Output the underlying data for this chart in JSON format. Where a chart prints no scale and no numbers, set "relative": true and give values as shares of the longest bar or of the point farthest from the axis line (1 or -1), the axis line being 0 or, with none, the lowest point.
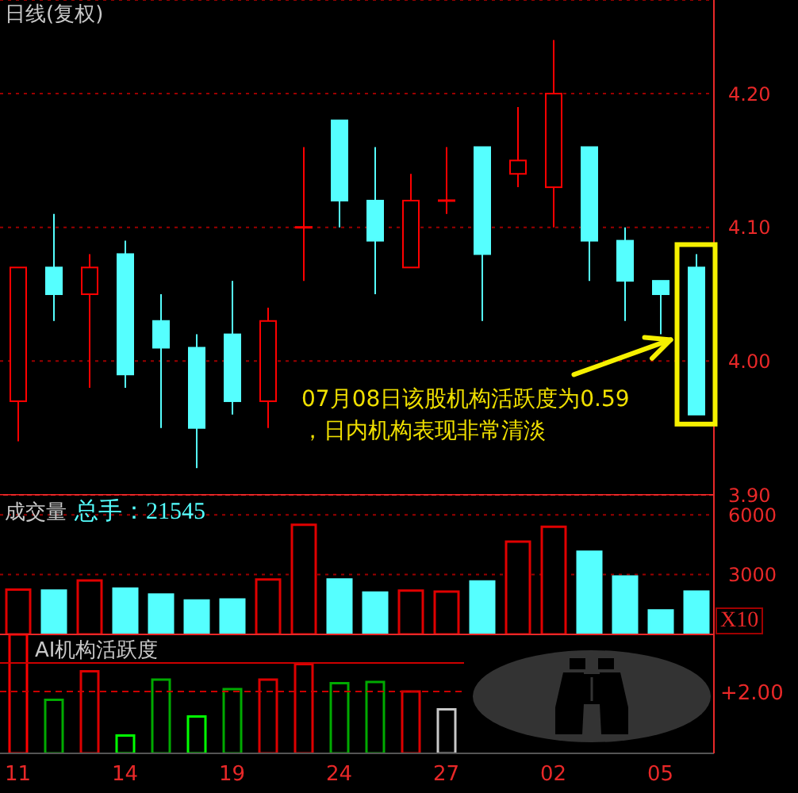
{
  "chart_data": [
    {
      "type": "candlestick",
      "title": "日线(复权)",
      "categories": [
        "11",
        null,
        null,
        "14",
        null,
        null,
        "19",
        null,
        null,
        "24",
        null,
        null,
        "27",
        null,
        null,
        "02",
        null,
        null,
        "05",
        null
      ],
      "ohlc": [
        [
          3.97,
          4.07,
          3.94,
          4.07
        ],
        [
          4.07,
          4.11,
          4.03,
          4.05
        ],
        [
          4.05,
          4.08,
          3.98,
          4.07
        ],
        [
          4.08,
          4.09,
          3.98,
          3.99
        ],
        [
          4.03,
          4.05,
          3.95,
          4.01
        ],
        [
          4.01,
          4.02,
          3.92,
          3.95
        ],
        [
          4.02,
          4.06,
          3.96,
          3.97
        ],
        [
          3.97,
          4.04,
          3.95,
          4.03
        ],
        [
          4.1,
          4.16,
          4.06,
          4.1
        ],
        [
          4.18,
          4.18,
          4.1,
          4.12
        ],
        [
          4.12,
          4.16,
          4.05,
          4.09
        ],
        [
          4.07,
          4.14,
          4.07,
          4.12
        ],
        [
          4.12,
          4.16,
          4.11,
          4.12
        ],
        [
          4.16,
          4.16,
          4.03,
          4.08
        ],
        [
          4.14,
          4.19,
          4.13,
          4.15
        ],
        [
          4.13,
          4.24,
          4.1,
          4.2
        ],
        [
          4.16,
          4.16,
          4.06,
          4.09
        ],
        [
          4.09,
          4.1,
          4.03,
          4.06
        ],
        [
          4.06,
          4.06,
          4.02,
          4.05
        ],
        [
          4.07,
          4.08,
          3.96,
          3.96
        ]
      ],
      "colors": [
        "#ff0000",
        "#55ffff",
        "#ff0000",
        "#55ffff",
        "#55ffff",
        "#55ffff",
        "#55ffff",
        "#ff0000",
        "#ff0000",
        "#55ffff",
        "#55ffff",
        "#ff0000",
        "#ff0000",
        "#55ffff",
        "#ff0000",
        "#ff0000",
        "#55ffff",
        "#55ffff",
        "#55ffff",
        "#55ffff"
      ],
      "ylim": [
        3.9,
        4.27
      ],
      "yticks": [
        {
          "value": 3.9,
          "label": "3.90"
        },
        {
          "value": 4.0,
          "label": "4.00"
        },
        {
          "value": 4.1,
          "label": "4.10"
        },
        {
          "value": 4.2,
          "label": "4.20"
        }
      ],
      "grid": "y",
      "tick_labels": "y",
      "annotations": [
        "07月08日该股机构活跃度为0.59",
        "，日内机构表现非常清淡"
      ]
    },
    {
      "type": "bar",
      "title": "成交量",
      "subtitle": "总手：21545",
      "ylabel": "X10",
      "categories": [
        "11",
        null,
        null,
        "14",
        null,
        null,
        "19",
        null,
        null,
        "24",
        null,
        null,
        "27",
        null,
        null,
        "02",
        null,
        null,
        "05",
        null
      ],
      "values": [
        2250,
        2200,
        2700,
        2300,
        2000,
        1700,
        1750,
        2750,
        5500,
        2750,
        2100,
        2200,
        2150,
        2650,
        4650,
        5400,
        4150,
        2900,
        1200,
        2150
      ],
      "colors": [
        "#e00000",
        "#55ffff",
        "#e00000",
        "#55ffff",
        "#55ffff",
        "#55ffff",
        "#55ffff",
        "#e00000",
        "#e00000",
        "#55ffff",
        "#55ffff",
        "#e00000",
        "#e00000",
        "#55ffff",
        "#e00000",
        "#e00000",
        "#55ffff",
        "#55ffff",
        "#55ffff",
        "#55ffff"
      ],
      "ylim": [
        0,
        7000
      ],
      "yticks": [
        3000,
        6000
      ],
      "grid": "y",
      "tick_labels": "y"
    },
    {
      "type": "bar",
      "title": "AI机构活跃度",
      "relative": true,
      "categories": [
        "11",
        null,
        null,
        "14",
        null,
        null,
        "19",
        null,
        null,
        "24",
        null,
        null,
        "27",
        null,
        null,
        "02",
        null,
        null,
        "05",
        null
      ],
      "values": [
        1,
        0.45,
        0.69,
        0.15,
        0.62,
        0.31,
        0.54,
        0.62,
        0.75,
        0.59,
        0.6,
        0.52,
        0.37,
        null,
        null,
        null,
        null,
        null,
        null,
        null
      ],
      "colors": [
        "#ff0000",
        "#00aa00",
        "#dd0000",
        "#00ff00",
        "#00aa00",
        "#00ff00",
        "#00aa00",
        "#dd0000",
        "#dd0000",
        "#00aa00",
        "#00aa00",
        "#dd0000",
        "#c8c8c8",
        null,
        null,
        null,
        null,
        null,
        null,
        null
      ],
      "ref_lines": [
        {
          "axis": "y",
          "value": 0.76,
          "color": "#cc0000",
          "line_style": "solid"
        },
        {
          "axis": "y",
          "value": 0.52,
          "color": "#cc0000",
          "line_style": "dashed"
        }
      ],
      "annotations": [
        "+2.00"
      ],
      "tick_labels": "x"
    }
  ]
}
